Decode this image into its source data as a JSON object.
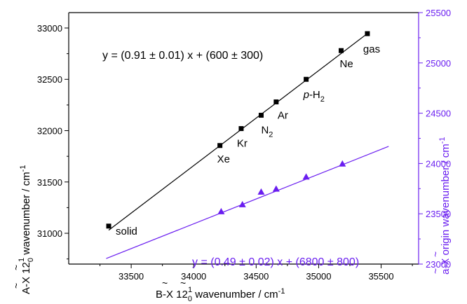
{
  "chart_data": {
    "type": "scatter",
    "x_axis": {
      "label_text": "B-X 12",
      "label_sub": "0",
      "label_sup": "1",
      "label_tail": " wavenumber / cm",
      "label_unit_sup": "-1",
      "range": [
        33000,
        35800
      ],
      "ticks": [
        33500,
        34000,
        34500,
        35000,
        35500
      ]
    },
    "y_axis_left": {
      "label_text": "A-X 12",
      "label_sub": "0",
      "label_sup": "1",
      "label_tail": " wavenumber / cm",
      "label_unit_sup": "-1",
      "range": [
        30700,
        33150
      ],
      "ticks": [
        31000,
        31500,
        32000,
        32500,
        33000
      ]
    },
    "y_axis_right": {
      "label_text": "a-X origin wavenumber / cm",
      "label_unit_sup": "-1",
      "range": [
        23000,
        25500
      ],
      "ticks": [
        23000,
        23500,
        24000,
        24500,
        25000,
        25500
      ],
      "color": "#6a1ef0"
    },
    "series": [
      {
        "marker": "square",
        "color": "#000000",
        "axis": "left",
        "points": [
          {
            "x": 33320,
            "y": 31070,
            "label": "solid"
          },
          {
            "x": 34210,
            "y": 31855,
            "label": "Xe"
          },
          {
            "x": 34380,
            "y": 32020,
            "label": "Kr"
          },
          {
            "x": 34540,
            "y": 32150,
            "label": "N",
            "label_sub": "2"
          },
          {
            "x": 34660,
            "y": 32280,
            "label": "Ar"
          },
          {
            "x": 34900,
            "y": 32500,
            "label": "p-H",
            "label_sub": "2"
          },
          {
            "x": 35180,
            "y": 32780,
            "label": "Ne"
          },
          {
            "x": 35390,
            "y": 32945,
            "label": "gas"
          }
        ],
        "fit": {
          "x": [
            33320,
            35400
          ],
          "y": [
            31030,
            32955
          ]
        },
        "equation": "y = (0.91 ± 0.01) x + (600 ± 300)"
      },
      {
        "marker": "triangle",
        "color": "#6a1ef0",
        "axis": "right",
        "points": [
          {
            "x": 34220,
            "y": 23520
          },
          {
            "x": 34390,
            "y": 23590
          },
          {
            "x": 34540,
            "y": 23715
          },
          {
            "x": 34660,
            "y": 23745
          },
          {
            "x": 34900,
            "y": 23865
          },
          {
            "x": 35190,
            "y": 23995
          }
        ],
        "fit": {
          "x": [
            33300,
            35560
          ],
          "y": [
            23055,
            24170
          ]
        },
        "equation": "y = (0.49 ± 0.02) x + (6800 ± 800)"
      }
    ]
  }
}
